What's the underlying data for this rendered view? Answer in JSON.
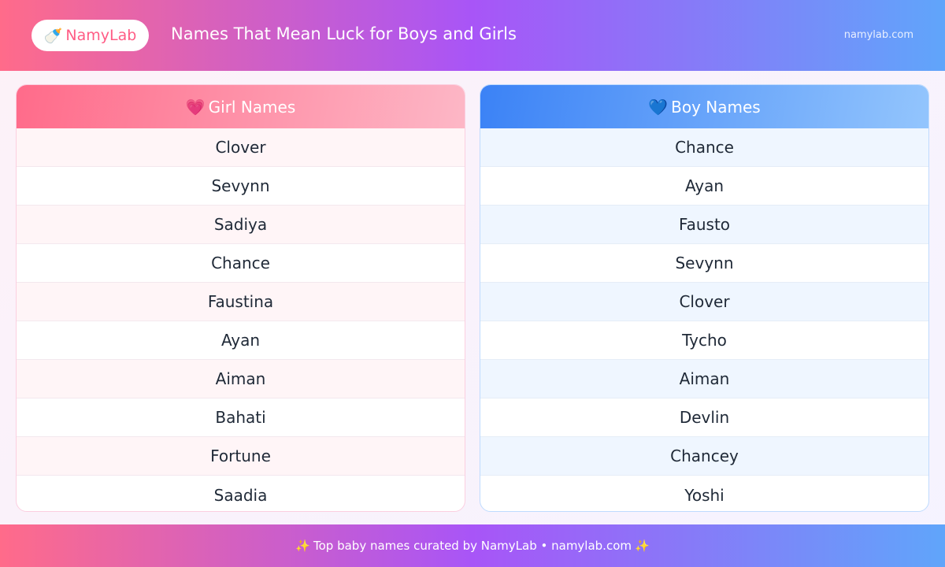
{
  "header": {
    "logo_icon": "baby-bottle-icon",
    "logo_emoji": "🍼",
    "logo_text": "NamyLab",
    "title": "Names That Mean Luck for Boys and Girls",
    "site": "namylab.com"
  },
  "girls": {
    "icon": "heart-icon",
    "emoji": "💗",
    "title": "Girl Names",
    "names": [
      "Clover",
      "Sevynn",
      "Sadiya",
      "Chance",
      "Faustina",
      "Ayan",
      "Aiman",
      "Bahati",
      "Fortune",
      "Saadia"
    ]
  },
  "boys": {
    "icon": "blue-heart-icon",
    "emoji": "💙",
    "title": "Boy Names",
    "names": [
      "Chance",
      "Ayan",
      "Fausto",
      "Sevynn",
      "Clover",
      "Tycho",
      "Aiman",
      "Devlin",
      "Chancey",
      "Yoshi"
    ]
  },
  "footer": {
    "sparkle": "✨",
    "text": "Top baby names curated by NamyLab • namylab.com"
  },
  "colors": {
    "pink": "#ff6b8a",
    "purple": "#a855f7",
    "blue": "#60a5fa"
  }
}
